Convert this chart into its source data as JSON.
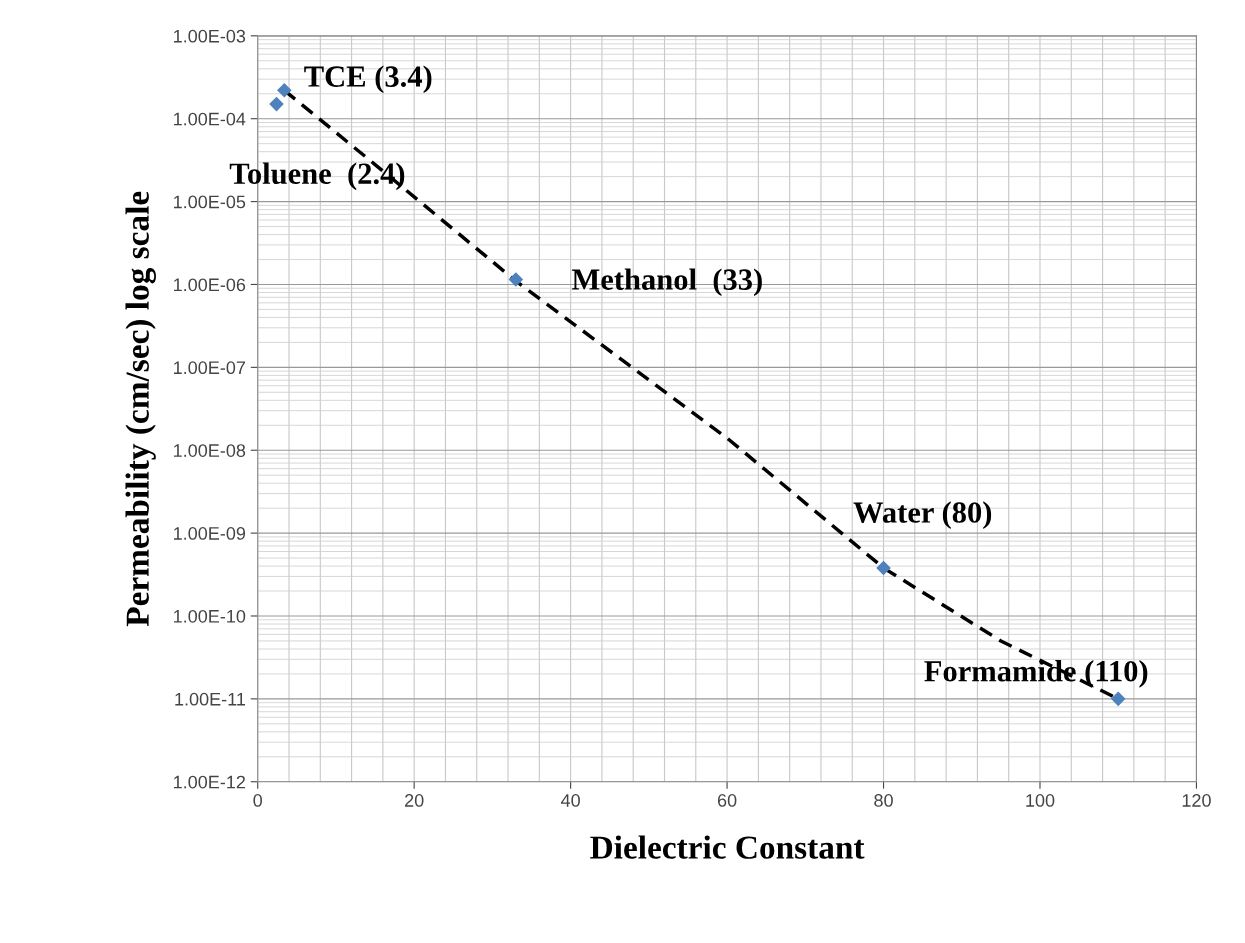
{
  "chart_data": {
    "type": "scatter",
    "xlabel": "Dielectric Constant",
    "ylabel": "Permeability (cm/sec) log scale",
    "x": [
      2.4,
      3.4,
      33,
      80,
      110
    ],
    "series": [
      {
        "color": "#4f81bd",
        "marker": "diamond",
        "values": [
          0.00015,
          0.00022,
          1.15e-06,
          3.8e-10,
          1e-11
        ]
      },
      {
        "type": "line",
        "color": "#000000",
        "marker": "none",
        "line_style": "dashed",
        "x": [
          3.4,
          15,
          33,
          60,
          80,
          95,
          110
        ],
        "values": [
          0.00022,
          2.8e-05,
          1.1e-06,
          1.4e-08,
          3.8e-10,
          5e-11,
          1e-11
        ]
      }
    ],
    "log": "y",
    "grid": true,
    "xlim": [
      0,
      120
    ],
    "xticks": [
      0,
      20,
      40,
      60,
      80,
      100,
      120
    ],
    "ylim": [
      1e-12,
      0.001
    ],
    "yticks": [
      {
        "value": 1e-12,
        "label": "1.00E-12"
      },
      {
        "value": 1e-11,
        "label": "1.00E-11"
      },
      {
        "value": 1e-10,
        "label": "1.00E-10"
      },
      {
        "value": 1e-09,
        "label": "1.00E-09"
      },
      {
        "value": 1e-08,
        "label": "1.00E-08"
      },
      {
        "value": 1e-07,
        "label": "1.00E-07"
      },
      {
        "value": 1e-06,
        "label": "1.00E-06"
      },
      {
        "value": 1e-05,
        "label": "1.00E-05"
      },
      {
        "value": 0.0001,
        "label": "1.00E-04"
      },
      {
        "value": 0.001,
        "label": "1.00E-03"
      }
    ],
    "annotations": [
      {
        "text": "Toluene  (2.4)",
        "x": 2.4,
        "y": 0.00015
      },
      {
        "text": "TCE (3.4)",
        "x": 3.4,
        "y": 0.00022
      },
      {
        "text": "Methanol  (33)",
        "x": 33,
        "y": 1.15e-06
      },
      {
        "text": "Water (80)",
        "x": 80,
        "y": 3.8e-10
      },
      {
        "text": "Formamide (110)",
        "x": 110,
        "y": 1e-11
      }
    ]
  }
}
